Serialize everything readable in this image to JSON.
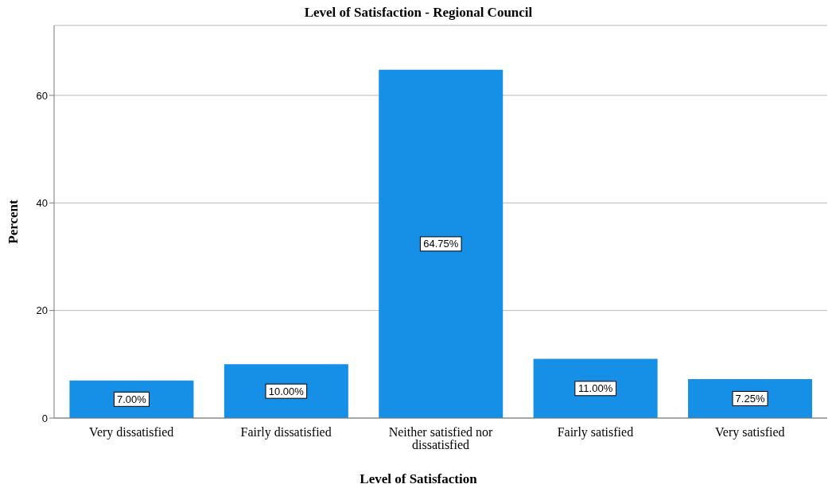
{
  "chart_data": {
    "type": "bar",
    "title": "Level of Satisfaction - Regional Council",
    "xlabel": "Level of Satisfaction",
    "ylabel": "Percent",
    "categories": [
      "Very dissatisfied",
      "Fairly dissatisfied",
      "Neither satisfied nor dissatisfied",
      "Fairly satisfied",
      "Very satisfied"
    ],
    "values": [
      7,
      10,
      64.75,
      11,
      7.25
    ],
    "value_labels": [
      "7.00%",
      "10.00%",
      "64.75%",
      "11.00%",
      "7.25%"
    ],
    "color": "#168fe6",
    "ylim": [
      0,
      73
    ],
    "yticks": [
      0,
      20,
      40,
      60
    ],
    "grid": "y",
    "legend": false
  }
}
